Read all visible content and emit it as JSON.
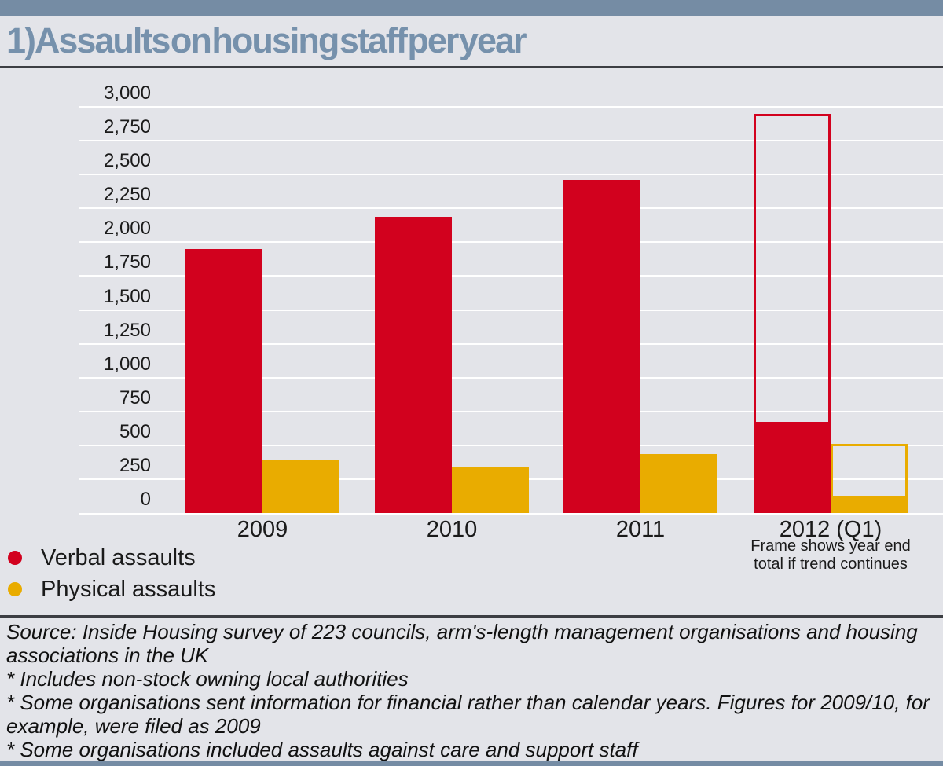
{
  "header": {
    "title": "1) Assaults on housing staff per year"
  },
  "chart_data": {
    "type": "bar",
    "title": "Assaults on housing staff per year",
    "categories": [
      "2009",
      "2010",
      "2011",
      "2012 (Q1)"
    ],
    "series": [
      {
        "name": "Verbal assaults",
        "color": "#D2011E",
        "values": [
          1950,
          2190,
          2460,
          675
        ]
      },
      {
        "name": "Physical assaults",
        "color": "#E9AC00",
        "values": [
          390,
          345,
          435,
          125
        ]
      }
    ],
    "projection_frames": {
      "category": "2012 (Q1)",
      "note": "Frame shows year end total if trend continues",
      "series": [
        {
          "name": "Verbal assaults",
          "value": 2950
        },
        {
          "name": "Physical assaults",
          "value": 510
        }
      ]
    },
    "ylim": [
      0,
      3000
    ],
    "ytick_step": 250,
    "ytick_labels": [
      "0",
      "250",
      "500",
      "750",
      "1,000",
      "1,250",
      "1,500",
      "1,750",
      "2,000",
      "2,250",
      "2,500",
      "2,750",
      "3,000"
    ],
    "grid": true,
    "legend_position": "bottom-left"
  },
  "annotation": {
    "line1": "Frame shows year end",
    "line2": "total if trend continues"
  },
  "legend": {
    "items": [
      {
        "label": "Verbal assaults",
        "color": "#D2011E"
      },
      {
        "label": "Physical assaults",
        "color": "#E9AC00"
      }
    ]
  },
  "footer": {
    "lines": [
      "Source: Inside Housing survey of 223 councils, arm's-length management organisations and housing associations in the UK",
      "* Includes non-stock owning local authorities",
      "* Some organisations sent information for financial rather than calendar years. Figures for 2009/10, for example, were filed as 2009",
      "* Some organisations included assaults against care and support staff"
    ]
  },
  "colors": {
    "accent_band": "#758CA4",
    "title_text": "#7691AC",
    "background": "#E3E4E9",
    "gridline": "#FFFFFF",
    "rule": "#3C3E43",
    "text": "#1A1A1A",
    "verbal_red": "#D2011E",
    "physical_yellow": "#E9AC00"
  }
}
